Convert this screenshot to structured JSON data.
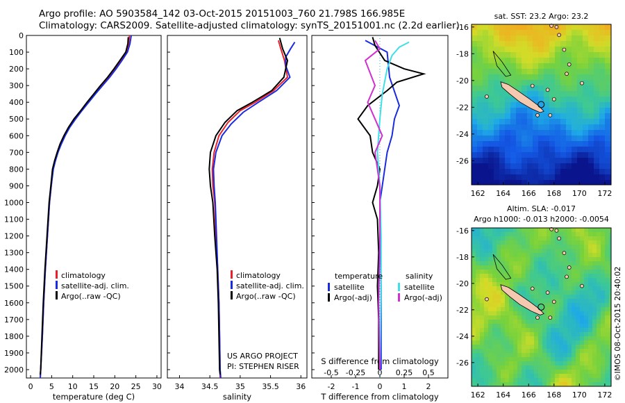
{
  "title_line1": "Argo profile: AO 5903584_142 03-Oct-2015 20151003_760 21.798S 166.985E",
  "title_line2": "Climatology: CARS2009. Satellite-adjusted climatology: synTS_20151001.nc (2.2d earlier)",
  "colors": {
    "climatology": "#e8202a",
    "satellite": "#1a2ae0",
    "argo": "#000000",
    "sat_salinity": "#3ee0e8",
    "argo_salinity": "#d030d0",
    "island": "#f5c8b0"
  },
  "chart_data": [
    {
      "type": "line",
      "panel": "temperature",
      "xlabel": "temperature (deg C)",
      "xlim": [
        -1,
        31
      ],
      "xticks": [
        0,
        5,
        10,
        15,
        20,
        25,
        30
      ],
      "ylim": [
        0,
        2050
      ],
      "yticks": [
        0,
        100,
        200,
        300,
        400,
        500,
        600,
        700,
        800,
        900,
        1000,
        1100,
        1200,
        1300,
        1400,
        1500,
        1600,
        1700,
        1800,
        1900,
        2000
      ],
      "legend": [
        "climatology",
        "satellite-adj. clim.",
        "Argo(..raw -QC)"
      ],
      "series": [
        {
          "name": "climatology",
          "color": "#e8202a",
          "points": [
            [
              23.5,
              0
            ],
            [
              23.3,
              50
            ],
            [
              22.8,
              100
            ],
            [
              21.5,
              150
            ],
            [
              20.0,
              200
            ],
            [
              18.5,
              250
            ],
            [
              16.8,
              300
            ],
            [
              15.2,
              350
            ],
            [
              13.6,
              400
            ],
            [
              12.0,
              450
            ],
            [
              10.5,
              500
            ],
            [
              9.2,
              550
            ],
            [
              8.1,
              600
            ],
            [
              7.2,
              650
            ],
            [
              6.4,
              700
            ],
            [
              5.8,
              750
            ],
            [
              5.3,
              800
            ],
            [
              4.9,
              900
            ],
            [
              4.5,
              1000
            ],
            [
              4.0,
              1200
            ],
            [
              3.5,
              1400
            ],
            [
              3.1,
              1600
            ],
            [
              2.8,
              1800
            ],
            [
              2.4,
              2000
            ],
            [
              2.3,
              2050
            ]
          ]
        },
        {
          "name": "satellite-adj. clim.",
          "color": "#1a2ae0",
          "points": [
            [
              23.9,
              0
            ],
            [
              23.6,
              50
            ],
            [
              23.0,
              100
            ],
            [
              21.7,
              150
            ],
            [
              20.3,
              200
            ],
            [
              18.8,
              250
            ],
            [
              17.1,
              300
            ],
            [
              15.4,
              350
            ],
            [
              13.8,
              400
            ],
            [
              12.2,
              450
            ],
            [
              10.7,
              500
            ],
            [
              9.3,
              550
            ],
            [
              8.2,
              600
            ],
            [
              7.3,
              650
            ],
            [
              6.5,
              700
            ],
            [
              5.9,
              750
            ],
            [
              5.4,
              800
            ],
            [
              4.9,
              900
            ],
            [
              4.5,
              1000
            ],
            [
              4.0,
              1200
            ],
            [
              3.5,
              1400
            ],
            [
              3.1,
              1600
            ],
            [
              2.8,
              1800
            ],
            [
              2.4,
              2000
            ],
            [
              2.3,
              2050
            ]
          ]
        },
        {
          "name": "Argo(..raw -QC)",
          "color": "#000000",
          "points": [
            [
              23.2,
              10
            ],
            [
              23.1,
              50
            ],
            [
              22.6,
              100
            ],
            [
              21.2,
              150
            ],
            [
              19.8,
              200
            ],
            [
              18.3,
              250
            ],
            [
              16.6,
              300
            ],
            [
              15.0,
              350
            ],
            [
              13.4,
              400
            ],
            [
              11.9,
              450
            ],
            [
              10.3,
              500
            ],
            [
              9.0,
              550
            ],
            [
              7.9,
              600
            ],
            [
              7.0,
              650
            ],
            [
              6.3,
              700
            ],
            [
              5.7,
              750
            ],
            [
              5.2,
              800
            ],
            [
              4.8,
              900
            ],
            [
              4.4,
              1000
            ],
            [
              3.9,
              1200
            ],
            [
              3.4,
              1400
            ],
            [
              3.0,
              1600
            ],
            [
              2.7,
              1800
            ],
            [
              2.4,
              2000
            ],
            [
              2.3,
              2030
            ]
          ]
        }
      ]
    },
    {
      "type": "line",
      "panel": "salinity",
      "xlabel": "salinity",
      "xlim": [
        33.8,
        36.1
      ],
      "xticks": [
        34,
        34.5,
        35,
        35.5,
        36
      ],
      "ylim": [
        0,
        2050
      ],
      "legend": [
        "climatology",
        "satellite-adj. clim.",
        "Argo(..raw -QC)"
      ],
      "annotation": [
        "US ARGO PROJECT",
        "PI: STEPHEN RISER"
      ],
      "series": [
        {
          "name": "climatology",
          "color": "#e8202a",
          "points": [
            [
              35.63,
              30
            ],
            [
              35.67,
              80
            ],
            [
              35.73,
              150
            ],
            [
              35.78,
              250
            ],
            [
              35.55,
              330
            ],
            [
              35.25,
              400
            ],
            [
              35.0,
              450
            ],
            [
              34.8,
              520
            ],
            [
              34.65,
              600
            ],
            [
              34.57,
              700
            ],
            [
              34.54,
              800
            ],
            [
              34.55,
              900
            ],
            [
              34.58,
              1000
            ],
            [
              34.6,
              1200
            ],
            [
              34.63,
              1400
            ],
            [
              34.65,
              1600
            ],
            [
              34.66,
              1800
            ],
            [
              34.67,
              2000
            ],
            [
              34.67,
              2050
            ]
          ]
        },
        {
          "name": "satellite-adj. clim.",
          "color": "#1a2ae0",
          "points": [
            [
              35.9,
              40
            ],
            [
              35.83,
              80
            ],
            [
              35.75,
              130
            ],
            [
              35.75,
              180
            ],
            [
              35.82,
              250
            ],
            [
              35.6,
              330
            ],
            [
              35.3,
              400
            ],
            [
              35.05,
              460
            ],
            [
              34.85,
              530
            ],
            [
              34.7,
              600
            ],
            [
              34.6,
              700
            ],
            [
              34.56,
              800
            ],
            [
              34.57,
              900
            ],
            [
              34.59,
              1000
            ],
            [
              34.61,
              1200
            ],
            [
              34.63,
              1400
            ],
            [
              34.65,
              1600
            ],
            [
              34.66,
              1800
            ],
            [
              34.67,
              2000
            ],
            [
              34.68,
              2050
            ]
          ]
        },
        {
          "name": "Argo(..raw -QC)",
          "color": "#000000",
          "points": [
            [
              35.65,
              15
            ],
            [
              35.7,
              80
            ],
            [
              35.78,
              150
            ],
            [
              35.72,
              250
            ],
            [
              35.52,
              330
            ],
            [
              35.2,
              400
            ],
            [
              34.95,
              450
            ],
            [
              34.75,
              520
            ],
            [
              34.6,
              600
            ],
            [
              34.51,
              700
            ],
            [
              34.49,
              800
            ],
            [
              34.51,
              900
            ],
            [
              34.55,
              1000
            ],
            [
              34.58,
              1200
            ],
            [
              34.62,
              1400
            ],
            [
              34.64,
              1600
            ],
            [
              34.65,
              1800
            ],
            [
              34.66,
              2000
            ],
            [
              34.67,
              2030
            ]
          ]
        }
      ]
    },
    {
      "type": "line",
      "panel": "difference",
      "xlabel_top": "S difference from climatology",
      "xlabel": "T difference from climatology",
      "xticks_top": [
        "-0.5",
        "-0.25",
        "0",
        "0.25",
        "0.5"
      ],
      "xticks": [
        -2,
        -1,
        0,
        1,
        2
      ],
      "xlim": [
        -2.8,
        2.8
      ],
      "ylim": [
        0,
        2050
      ],
      "legend": [
        {
          "header": "temperature",
          "items": [
            "satellite",
            "Argo(-adj)"
          ]
        },
        {
          "header": "salinity",
          "items": [
            "satellite",
            "Argo(-adj)"
          ]
        }
      ],
      "series": [
        {
          "name": "temperature satellite",
          "color": "#1a2ae0",
          "points": [
            [
              -0.6,
              30
            ],
            [
              0.3,
              100
            ],
            [
              0.4,
              250
            ],
            [
              0.8,
              420
            ],
            [
              0.6,
              500
            ],
            [
              0.5,
              600
            ],
            [
              0.3,
              700
            ],
            [
              0.2,
              800
            ],
            [
              0.1,
              900
            ],
            [
              0.0,
              1000
            ],
            [
              0.05,
              1500
            ],
            [
              0.05,
              2000
            ]
          ]
        },
        {
          "name": "temperature Argo(-adj)",
          "color": "#000000",
          "points": [
            [
              -0.3,
              10
            ],
            [
              -0.2,
              60
            ],
            [
              0.2,
              150
            ],
            [
              1.0,
              200
            ],
            [
              1.8,
              230
            ],
            [
              0.7,
              280
            ],
            [
              0.3,
              330
            ],
            [
              -0.5,
              420
            ],
            [
              -0.9,
              500
            ],
            [
              -0.4,
              600
            ],
            [
              -0.3,
              700
            ],
            [
              0.0,
              800
            ],
            [
              -0.1,
              900
            ],
            [
              -0.3,
              1000
            ],
            [
              -0.1,
              1100
            ],
            [
              -0.05,
              1300
            ],
            [
              -0.1,
              1500
            ],
            [
              -0.05,
              1700
            ],
            [
              -0.05,
              2000
            ]
          ]
        },
        {
          "name": "salinity satellite",
          "color": "#3ee0e8",
          "points": [
            [
              1.2,
              40
            ],
            [
              0.8,
              70
            ],
            [
              0.5,
              120
            ],
            [
              0.3,
              200
            ],
            [
              0.1,
              350
            ],
            [
              0.0,
              500
            ],
            [
              -0.1,
              700
            ],
            [
              0.0,
              900
            ],
            [
              0.05,
              1200
            ],
            [
              0.05,
              1500
            ],
            [
              0.0,
              2000
            ]
          ]
        },
        {
          "name": "salinity Argo(-adj)",
          "color": "#d030d0",
          "points": [
            [
              -0.2,
              30
            ],
            [
              0.0,
              80
            ],
            [
              -0.6,
              150
            ],
            [
              -0.2,
              300
            ],
            [
              -0.5,
              400
            ],
            [
              -0.2,
              500
            ],
            [
              0.1,
              600
            ],
            [
              -0.2,
              700
            ],
            [
              0.0,
              900
            ],
            [
              0.0,
              1200
            ],
            [
              -0.05,
              1600
            ],
            [
              0.0,
              2000
            ]
          ]
        }
      ]
    },
    {
      "type": "heatmap",
      "panel": "sst_map",
      "title": "sat. SST: 23.2  Argo: 23.2",
      "xticks": [
        162,
        164,
        166,
        168,
        170,
        172
      ],
      "yticks": [
        -16,
        -18,
        -20,
        -22,
        -24,
        -26
      ],
      "xlim": [
        161.5,
        172.5
      ],
      "ylim": [
        -27.8,
        -15.8
      ]
    },
    {
      "type": "heatmap",
      "panel": "sla_map",
      "title_lines": [
        "Altim. SLA: -0.017",
        "Argo h1000: -0.013 h2000: -0.0054"
      ],
      "xticks": [
        162,
        164,
        166,
        168,
        170,
        172
      ],
      "yticks": [
        -16,
        -18,
        -20,
        -22,
        -24,
        -26
      ],
      "xlim": [
        161.5,
        172.5
      ],
      "ylim": [
        -27.8,
        -15.8
      ]
    }
  ],
  "credit": "©IMOS 08-Oct-2015 20:40:02"
}
